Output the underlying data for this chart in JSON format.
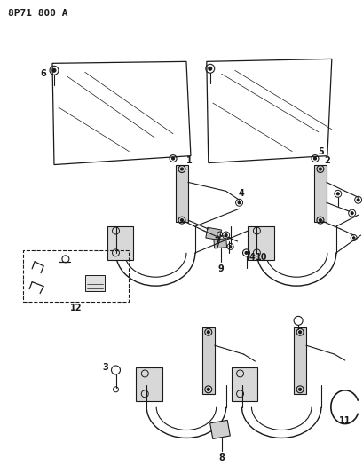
{
  "title": "8P71 800 A",
  "bg": "#ffffff",
  "lc": "#1a1a1a",
  "figsize": [
    4.09,
    5.33
  ],
  "dpi": 100
}
